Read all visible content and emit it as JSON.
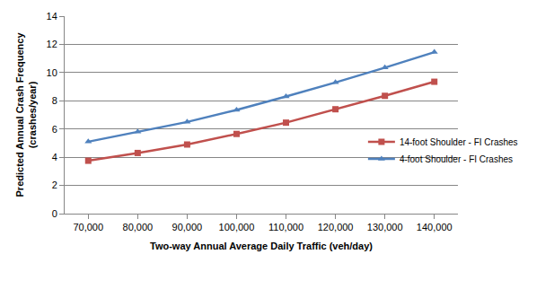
{
  "chart_data": {
    "type": "line",
    "x_label": "Two-way Annual Average Daily Traffic (veh/day)",
    "y_label": "Predicted Annual Crash Frequency\n(crashes/year)",
    "categories": [
      "70,000",
      "80,000",
      "90,000",
      "100,000",
      "110,000",
      "120,000",
      "130,000",
      "140,000"
    ],
    "series": [
      {
        "name": "14-foot Shoulder - FI Crashes",
        "color": "#c0504d",
        "marker": "square",
        "values": [
          3.75,
          4.3,
          4.9,
          5.65,
          6.45,
          7.4,
          8.35,
          9.35
        ]
      },
      {
        "name": "4-foot Shoulder - FI Crashes",
        "color": "#4f81bd",
        "marker": "triangle",
        "values": [
          5.1,
          5.8,
          6.5,
          7.35,
          8.3,
          9.3,
          10.35,
          11.45
        ]
      }
    ],
    "ylim": [
      0,
      14
    ],
    "yticks": [
      0,
      2,
      4,
      6,
      8,
      10,
      12,
      14
    ],
    "grid": true,
    "legend": "right"
  }
}
